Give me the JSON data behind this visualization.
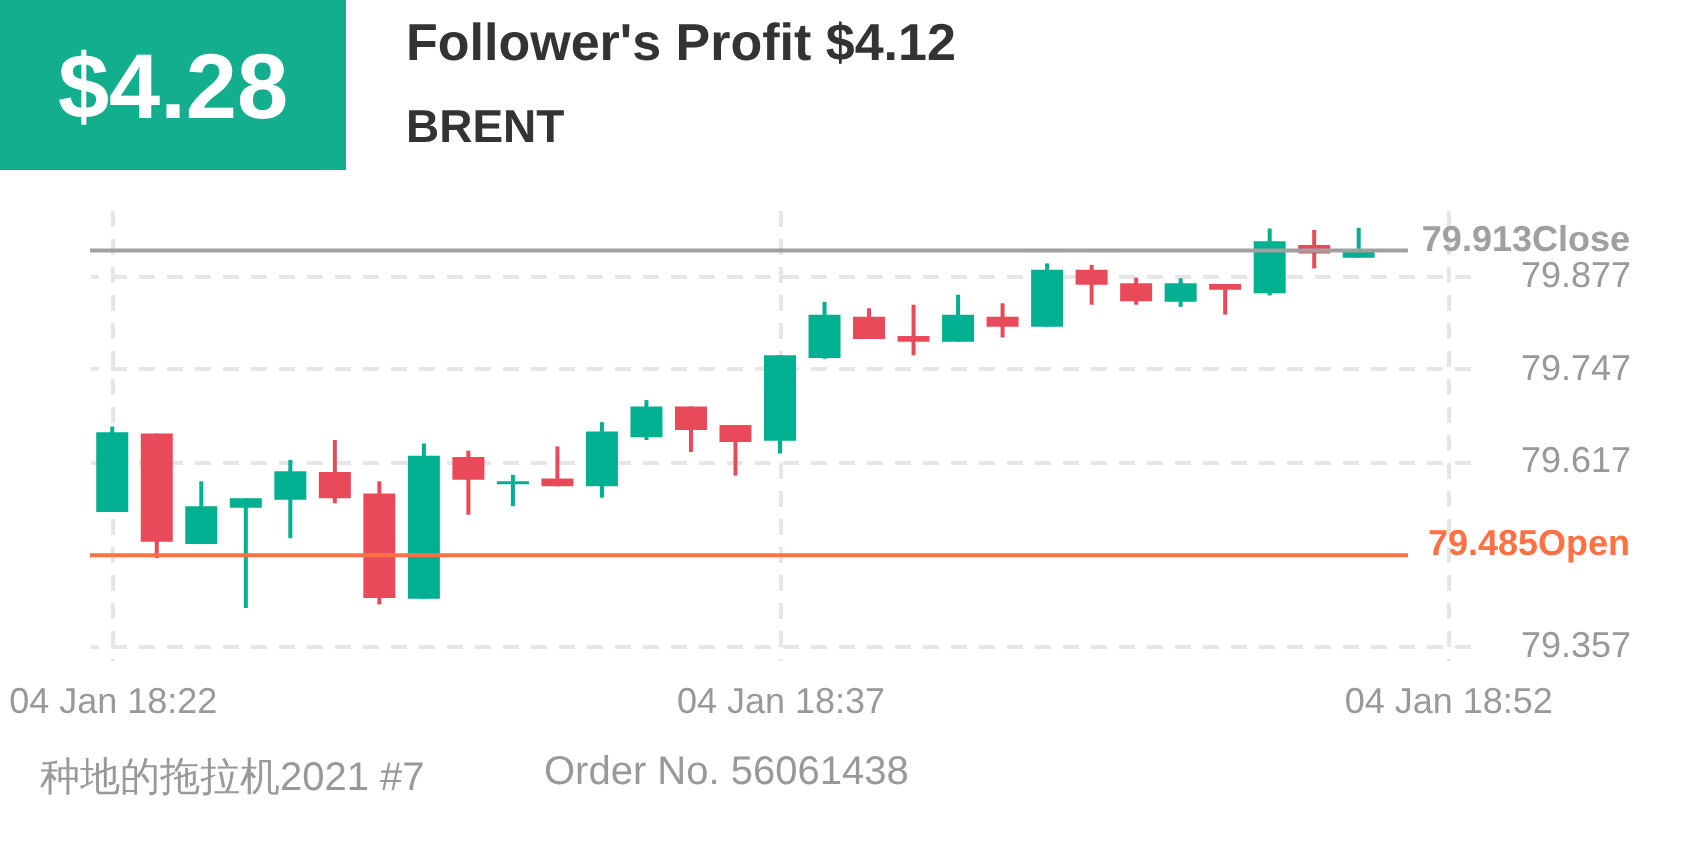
{
  "chart_data": {
    "type": "candlestick",
    "title": "Follower's Profit $4.12",
    "subtitle": "BRENT",
    "annotations": [
      "$4.28",
      "种地的拖拉机2021 #7",
      "Order No. 56061438"
    ],
    "categories": [
      "04 Jan 18:22",
      null,
      null,
      null,
      null,
      null,
      null,
      null,
      null,
      null,
      null,
      null,
      null,
      null,
      null,
      "04 Jan 18:37",
      null,
      null,
      null,
      null,
      null,
      null,
      null,
      null,
      null,
      null,
      null,
      null,
      null,
      null,
      "04 Jan 18:52"
    ],
    "ohlc": [
      [
        79.546,
        79.666,
        79.546,
        79.658
      ],
      [
        79.656,
        79.656,
        79.481,
        79.504
      ],
      [
        79.501,
        79.589,
        79.501,
        79.554
      ],
      [
        79.552,
        79.565,
        79.411,
        79.565
      ],
      [
        79.563,
        79.619,
        79.509,
        79.603
      ],
      [
        79.602,
        79.647,
        79.558,
        79.565
      ],
      [
        79.572,
        79.589,
        79.416,
        79.425
      ],
      [
        79.424,
        79.642,
        79.424,
        79.625
      ],
      [
        79.623,
        79.632,
        79.542,
        79.591
      ],
      [
        79.585,
        79.598,
        79.554,
        79.589
      ],
      [
        79.593,
        79.638,
        79.582,
        79.582
      ],
      [
        79.582,
        79.672,
        79.566,
        79.659
      ],
      [
        79.651,
        79.703,
        79.647,
        79.694
      ],
      [
        79.694,
        79.694,
        79.63,
        79.661
      ],
      [
        79.668,
        79.668,
        79.597,
        79.644
      ],
      [
        79.646,
        79.766,
        79.628,
        79.766
      ],
      [
        79.762,
        79.841,
        79.761,
        79.823
      ],
      [
        79.82,
        79.832,
        79.789,
        79.789
      ],
      [
        79.793,
        79.837,
        79.766,
        79.785
      ],
      [
        79.785,
        79.851,
        79.785,
        79.823
      ],
      [
        79.82,
        79.839,
        79.791,
        79.806
      ],
      [
        79.806,
        79.895,
        79.806,
        79.886
      ],
      [
        79.886,
        79.893,
        79.837,
        79.865
      ],
      [
        79.867,
        79.875,
        79.837,
        79.842
      ],
      [
        79.841,
        79.874,
        79.834,
        79.867
      ],
      [
        79.866,
        79.866,
        79.823,
        79.858
      ],
      [
        79.853,
        79.944,
        79.85,
        79.926
      ],
      [
        79.921,
        79.942,
        79.888,
        79.909
      ],
      [
        79.903,
        79.945,
        79.903,
        79.913
      ],
      null,
      null
    ],
    "colors": [
      "#00b090",
      "#e84a5a",
      "#00b090",
      "#00b090",
      "#00b090",
      "#e84a5a",
      "#e84a5a",
      "#00b090",
      "#e84a5a",
      "#00b090",
      "#e84a5a",
      "#00b090",
      "#00b090",
      "#e84a5a",
      "#e84a5a",
      "#00b090",
      "#00b090",
      "#e84a5a",
      "#e84a5a",
      "#00b090",
      "#e84a5a",
      "#00b090",
      "#e84a5a",
      "#e84a5a",
      "#00b090",
      "#e84a5a",
      "#00b090",
      "#e84a5a",
      "#00b090",
      null,
      null
    ],
    "ylim": [
      79.338,
      79.97
    ],
    "yticks": [
      79.357,
      79.617,
      79.747,
      79.877
    ],
    "grid": true,
    "ref_lines": [
      {
        "axis": "y",
        "value": 79.913,
        "label": "79.913Close",
        "color": "#a0a0a0"
      },
      {
        "axis": "y",
        "value": 79.485,
        "label": "79.485Open",
        "color": "#ff7043"
      }
    ]
  }
}
